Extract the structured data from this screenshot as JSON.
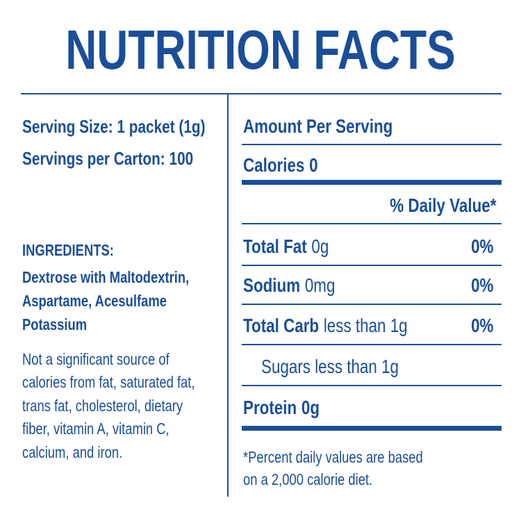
{
  "title": "NUTRITION FACTS",
  "left": {
    "serving_size": "Serving Size: 1 packet (1g)",
    "servings": "Servings per Carton: 100",
    "ingredients_heading": "INGREDIENTS:",
    "ingredients_lines": [
      "Dextrose with Maltodextrin,",
      "Aspartame, Acesulfame",
      "Potassium"
    ],
    "note_lines": [
      "Not a significant source of",
      "calories from fat, saturated fat,",
      "trans fat, cholesterol, dietary",
      "fiber, vitamin A, vitamin C,",
      "calcium, and iron."
    ]
  },
  "right": {
    "amount_heading": "Amount Per Serving",
    "calories": {
      "label": "Calories",
      "value": "0"
    },
    "dv_heading": "% Daily Value*",
    "rows": [
      {
        "label": "Total Fat",
        "amount": "0g",
        "dv": "0%"
      },
      {
        "label": "Sodium",
        "amount": "0mg",
        "dv": "0%"
      },
      {
        "label": "Total Carb",
        "amount": "less than 1g",
        "dv": "0%"
      }
    ],
    "sugars": "Sugars less than 1g",
    "protein": {
      "label": "Protein",
      "amount": "0g"
    },
    "footnote_lines": [
      "*Percent daily values are based",
      "on a 2,000 calorie diet."
    ]
  }
}
